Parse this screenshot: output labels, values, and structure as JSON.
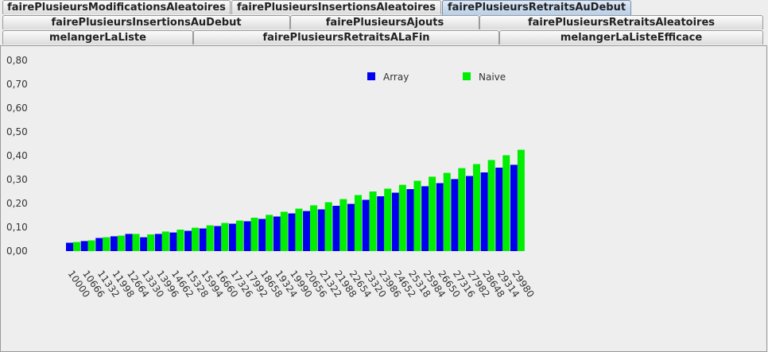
{
  "tabs": {
    "row1": [
      {
        "label": "fairePlusieursModificationsAleatoires",
        "selected": false
      },
      {
        "label": "fairePlusieursInsertionsAleatoires",
        "selected": false
      },
      {
        "label": "fairePlusieursRetraitsAuDebut",
        "selected": true
      }
    ],
    "row2": [
      {
        "label": "fairePlusieursInsertionsAuDebut"
      },
      {
        "label": "fairePlusieursAjouts"
      },
      {
        "label": "fairePlusieursRetraitsAleatoires"
      }
    ],
    "row3": [
      {
        "label": "melangerLaListe"
      },
      {
        "label": "fairePlusieursRetraitsALaFin"
      },
      {
        "label": "melangerLaListeEfficace"
      }
    ]
  },
  "chart_data": {
    "type": "bar",
    "title": "",
    "xlabel": "",
    "ylabel": "",
    "ylim": [
      0,
      0.8
    ],
    "yticks": [
      "0,00",
      "0,10",
      "0,20",
      "0,30",
      "0,40",
      "0,50",
      "0,60",
      "0,70",
      "0,80"
    ],
    "grid": false,
    "legend_position": "top-right",
    "categories": [
      "10000",
      "10666",
      "11332",
      "11998",
      "12664",
      "13330",
      "13996",
      "14662",
      "15328",
      "15994",
      "16660",
      "17326",
      "17992",
      "18658",
      "19324",
      "19990",
      "20656",
      "21322",
      "21988",
      "22654",
      "23320",
      "23986",
      "24652",
      "25318",
      "25984",
      "26650",
      "27316",
      "27982",
      "28648",
      "29314",
      "29980"
    ],
    "series": [
      {
        "name": "Array",
        "color": "#0000ee",
        "values": [
          0.035,
          0.042,
          0.055,
          0.062,
          0.072,
          0.058,
          0.072,
          0.078,
          0.085,
          0.095,
          0.105,
          0.115,
          0.125,
          0.135,
          0.145,
          0.158,
          0.168,
          0.175,
          0.19,
          0.198,
          0.215,
          0.23,
          0.245,
          0.26,
          0.272,
          0.285,
          0.302,
          0.315,
          0.33,
          0.35,
          0.362
        ]
      },
      {
        "name": "Naive",
        "color": "#00ee00",
        "values": [
          0.038,
          0.045,
          0.058,
          0.065,
          0.072,
          0.07,
          0.082,
          0.09,
          0.098,
          0.108,
          0.118,
          0.128,
          0.14,
          0.152,
          0.165,
          0.178,
          0.192,
          0.205,
          0.218,
          0.235,
          0.25,
          0.262,
          0.278,
          0.295,
          0.312,
          0.328,
          0.348,
          0.365,
          0.382,
          0.402,
          0.425
        ]
      }
    ]
  }
}
